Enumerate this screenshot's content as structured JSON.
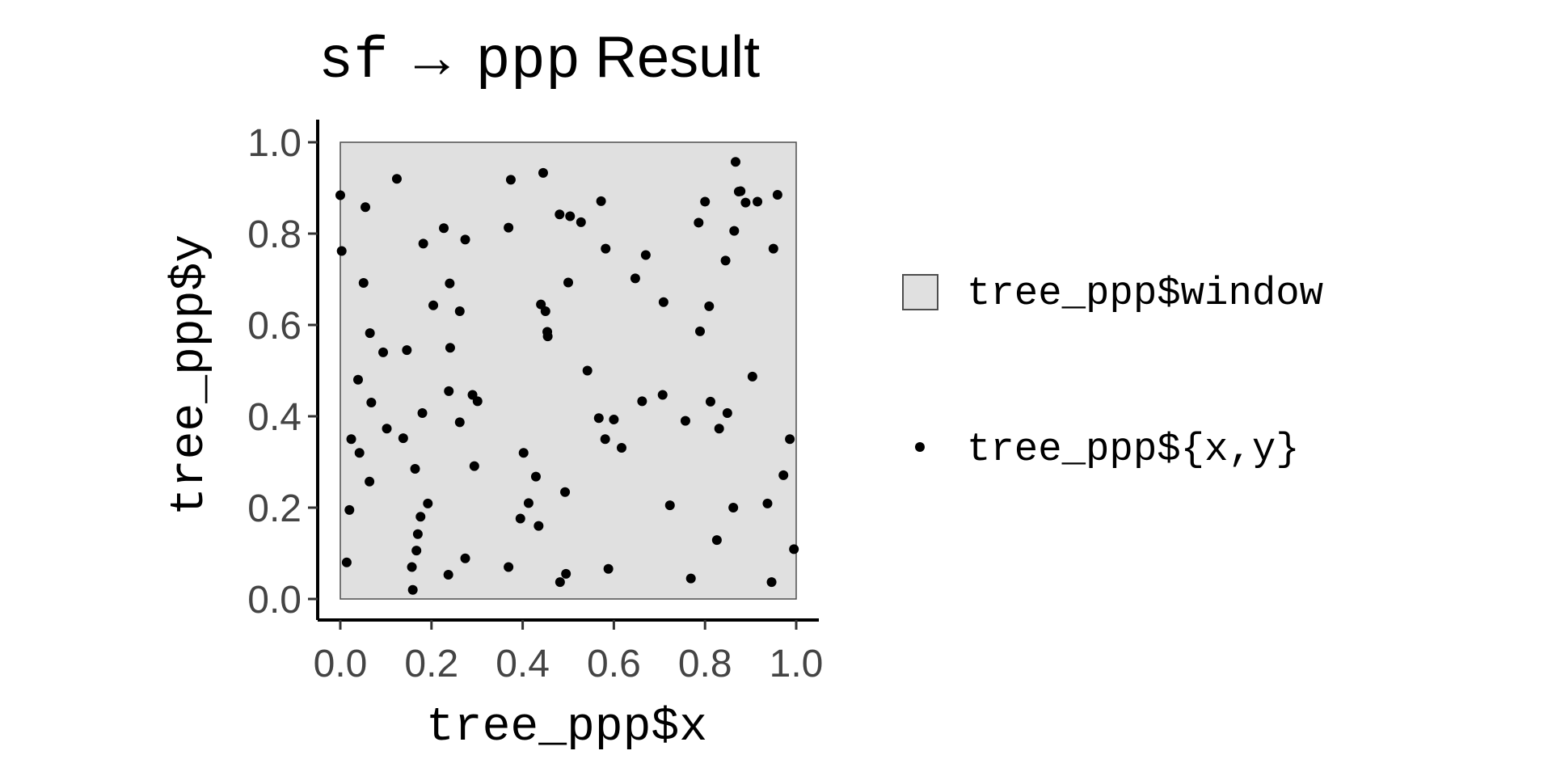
{
  "chart_data": {
    "type": "scatter",
    "title": {
      "code_prefix": "sf",
      "arrow": "→",
      "code_target": "ppp",
      "suffix": "Result"
    },
    "xlabel": "tree_ppp$x",
    "ylabel": "tree_ppp$y",
    "xlim": [
      0,
      1
    ],
    "ylim": [
      0,
      1
    ],
    "x_ticks": [
      "0.0",
      "0.2",
      "0.4",
      "0.6",
      "0.8",
      "1.0"
    ],
    "y_ticks": [
      "0.0",
      "0.2",
      "0.4",
      "0.6",
      "0.8",
      "1.0"
    ],
    "grid": false,
    "legend_position": "right",
    "legend": [
      {
        "label": "tree_ppp$window",
        "symbol": "square-filled"
      },
      {
        "label": "tree_ppp${x,y}",
        "symbol": "point"
      }
    ],
    "window": {
      "xmin": 0,
      "xmax": 1,
      "ymin": 0,
      "ymax": 1
    },
    "colors": {
      "window_fill": "#e0e0e0",
      "window_stroke": "#4d4d4d",
      "point": "#000000",
      "axis": "#000000",
      "tick_text": "#444444"
    },
    "series": [
      {
        "x": [
          0.0,
          0.003,
          0.014,
          0.02,
          0.024,
          0.039,
          0.042,
          0.051,
          0.055,
          0.064,
          0.065,
          0.068,
          0.094,
          0.102,
          0.124,
          0.138,
          0.146,
          0.157,
          0.159,
          0.164,
          0.167,
          0.17,
          0.176,
          0.18,
          0.182,
          0.192,
          0.204,
          0.227,
          0.237,
          0.238,
          0.24,
          0.241,
          0.262,
          0.262,
          0.274,
          0.274,
          0.29,
          0.294,
          0.301,
          0.369,
          0.369,
          0.374,
          0.395,
          0.402,
          0.413,
          0.429,
          0.435,
          0.44,
          0.445,
          0.45,
          0.454,
          0.455,
          0.481,
          0.482,
          0.493,
          0.495,
          0.5,
          0.504,
          0.528,
          0.542,
          0.567,
          0.572,
          0.581,
          0.582,
          0.588,
          0.6,
          0.617,
          0.647,
          0.662,
          0.67,
          0.707,
          0.709,
          0.723,
          0.757,
          0.769,
          0.786,
          0.789,
          0.8,
          0.809,
          0.812,
          0.826,
          0.831,
          0.845,
          0.849,
          0.862,
          0.864,
          0.867,
          0.874,
          0.878,
          0.889,
          0.904,
          0.915,
          0.937,
          0.946,
          0.95,
          0.959,
          0.972,
          0.986,
          0.995
        ],
        "y": [
          0.884,
          0.762,
          0.08,
          0.195,
          0.35,
          0.48,
          0.32,
          0.692,
          0.858,
          0.257,
          0.582,
          0.43,
          0.54,
          0.373,
          0.92,
          0.352,
          0.545,
          0.07,
          0.02,
          0.285,
          0.106,
          0.142,
          0.18,
          0.407,
          0.778,
          0.209,
          0.643,
          0.812,
          0.053,
          0.455,
          0.691,
          0.55,
          0.63,
          0.387,
          0.787,
          0.089,
          0.447,
          0.291,
          0.433,
          0.813,
          0.07,
          0.918,
          0.176,
          0.32,
          0.21,
          0.268,
          0.16,
          0.645,
          0.933,
          0.63,
          0.585,
          0.575,
          0.842,
          0.037,
          0.234,
          0.055,
          0.693,
          0.838,
          0.825,
          0.5,
          0.396,
          0.871,
          0.35,
          0.767,
          0.066,
          0.393,
          0.331,
          0.702,
          0.433,
          0.753,
          0.447,
          0.65,
          0.205,
          0.39,
          0.045,
          0.824,
          0.586,
          0.87,
          0.641,
          0.432,
          0.129,
          0.373,
          0.741,
          0.407,
          0.2,
          0.806,
          0.957,
          0.892,
          0.893,
          0.868,
          0.487,
          0.87,
          0.209,
          0.037,
          0.767,
          0.885,
          0.271,
          0.35,
          0.109
        ]
      }
    ]
  }
}
